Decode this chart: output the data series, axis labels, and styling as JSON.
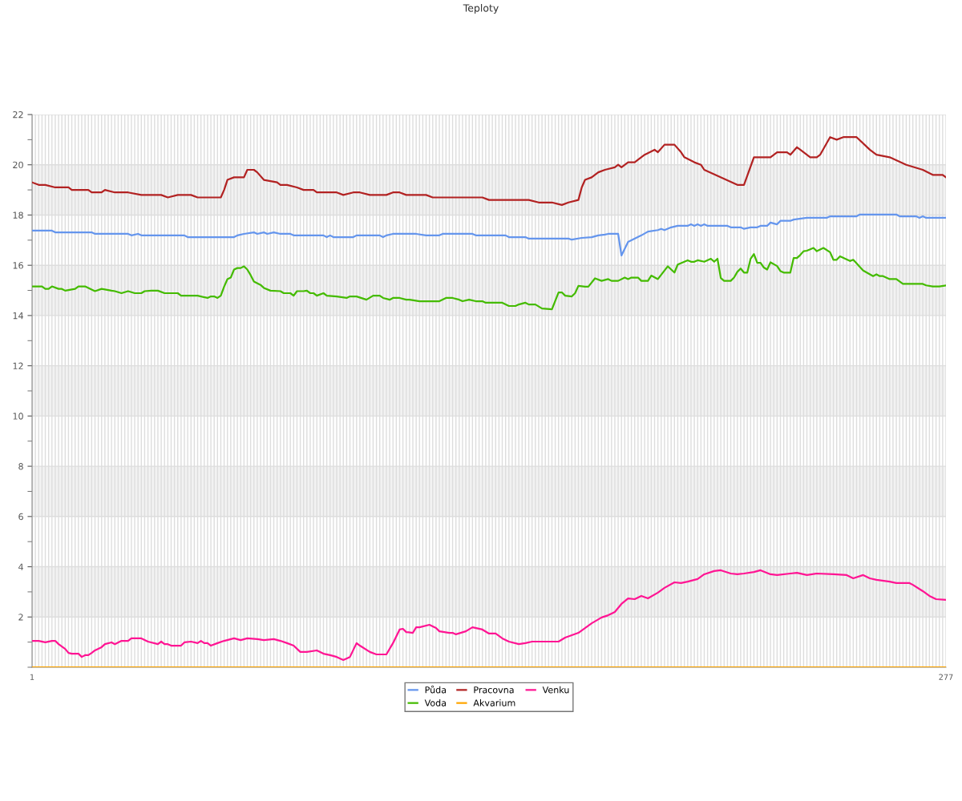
{
  "chart_data": {
    "type": "line",
    "title": "Teploty",
    "xlim": [
      1,
      277
    ],
    "ylim": [
      0,
      22
    ],
    "xticks": [
      1,
      {
        "value": 2,
        "label": null
      },
      {
        "value": 3,
        "label": null
      },
      {
        "value": 4,
        "label": null
      },
      {
        "value": 5,
        "label": null
      },
      {
        "value": 6,
        "label": null
      },
      {
        "value": 7,
        "label": null
      },
      {
        "value": 8,
        "label": null
      },
      {
        "value": 9,
        "label": null
      },
      {
        "value": 10,
        "label": null
      },
      {
        "value": 11,
        "label": null
      },
      {
        "value": 12,
        "label": null
      },
      {
        "value": 13,
        "label": null
      },
      {
        "value": 14,
        "label": null
      },
      {
        "value": 15,
        "label": null
      },
      {
        "value": 16,
        "label": null
      },
      {
        "value": 17,
        "label": null
      },
      {
        "value": 18,
        "label": null
      },
      {
        "value": 19,
        "label": null
      },
      {
        "value": 20,
        "label": null
      },
      {
        "value": 21,
        "label": null
      },
      {
        "value": 22,
        "label": null
      },
      {
        "value": 23,
        "label": null
      },
      {
        "value": 24,
        "label": null
      },
      {
        "value": 25,
        "label": null
      },
      {
        "value": 26,
        "label": null
      },
      {
        "value": 27,
        "label": null
      },
      {
        "value": 28,
        "label": null
      },
      {
        "value": 29,
        "label": null
      },
      {
        "value": 30,
        "label": null
      },
      {
        "value": 31,
        "label": null
      },
      {
        "value": 32,
        "label": null
      },
      {
        "value": 33,
        "label": null
      },
      {
        "value": 34,
        "label": null
      },
      {
        "value": 35,
        "label": null
      },
      {
        "value": 36,
        "label": null
      },
      {
        "value": 37,
        "label": null
      },
      {
        "value": 38,
        "label": null
      },
      {
        "value": 39,
        "label": null
      },
      {
        "value": 40,
        "label": null
      },
      {
        "value": 41,
        "label": null
      },
      {
        "value": 42,
        "label": null
      },
      {
        "value": 43,
        "label": null
      },
      {
        "value": 44,
        "label": null
      },
      {
        "value": 45,
        "label": null
      },
      {
        "value": 46,
        "label": null
      },
      {
        "value": 47,
        "label": null
      },
      {
        "value": 48,
        "label": null
      },
      {
        "value": 49,
        "label": null
      },
      {
        "value": 50,
        "label": null
      },
      {
        "value": 51,
        "label": null
      },
      {
        "value": 52,
        "label": null
      },
      {
        "value": 53,
        "label": null
      },
      {
        "value": 54,
        "label": null
      },
      {
        "value": 55,
        "label": null
      },
      {
        "value": 56,
        "label": null
      },
      {
        "value": 57,
        "label": null
      },
      {
        "value": 58,
        "label": null
      },
      {
        "value": 59,
        "label": null
      },
      {
        "value": 60,
        "label": null
      },
      {
        "value": 61,
        "label": null
      },
      {
        "value": 62,
        "label": null
      },
      {
        "value": 63,
        "label": null
      },
      {
        "value": 64,
        "label": null
      },
      {
        "value": 65,
        "label": null
      },
      {
        "value": 66,
        "label": null
      },
      {
        "value": 67,
        "label": null
      },
      {
        "value": 68,
        "label": null
      },
      {
        "value": 69,
        "label": null
      },
      {
        "value": 70,
        "label": null
      },
      {
        "value": 71,
        "label": null
      },
      {
        "value": 72,
        "label": null
      },
      {
        "value": 73,
        "label": null
      },
      {
        "value": 74,
        "label": null
      },
      {
        "value": 75,
        "label": null
      },
      {
        "value": 76,
        "label": null
      },
      {
        "value": 77,
        "label": null
      },
      {
        "value": 78,
        "label": null
      },
      {
        "value": 79,
        "label": null
      },
      {
        "value": 80,
        "label": null
      },
      {
        "value": 81,
        "label": null
      },
      {
        "value": 82,
        "label": null
      },
      {
        "value": 83,
        "label": null
      },
      {
        "value": 84,
        "label": null
      },
      {
        "value": 85,
        "label": null
      },
      {
        "value": 86,
        "label": null
      },
      {
        "value": 87,
        "label": null
      },
      {
        "value": 88,
        "label": null
      },
      {
        "value": 89,
        "label": null
      },
      {
        "value": 90,
        "label": null
      },
      {
        "value": 91,
        "label": null
      },
      {
        "value": 92,
        "label": null
      },
      {
        "value": 93,
        "label": null
      },
      {
        "value": 94,
        "label": null
      },
      {
        "value": 95,
        "label": null
      },
      {
        "value": 96,
        "label": null
      },
      {
        "value": 97,
        "label": null
      },
      {
        "value": 98,
        "label": null
      },
      {
        "value": 99,
        "label": null
      },
      {
        "value": 100,
        "label": null
      },
      {
        "value": 101,
        "label": null
      },
      {
        "value": 102,
        "label": null
      },
      {
        "value": 103,
        "label": null
      },
      {
        "value": 104,
        "label": null
      },
      {
        "value": 105,
        "label": null
      },
      {
        "value": 106,
        "label": null
      },
      {
        "value": 107,
        "label": null
      },
      {
        "value": 108,
        "label": null
      },
      {
        "value": 109,
        "label": null
      },
      {
        "value": 110,
        "label": null
      },
      {
        "value": 111,
        "label": null
      },
      {
        "value": 112,
        "label": null
      },
      {
        "value": 113,
        "label": null
      },
      {
        "value": 114,
        "label": null
      },
      {
        "value": 115,
        "label": null
      },
      {
        "value": 116,
        "label": null
      },
      {
        "value": 117,
        "label": null
      },
      {
        "value": 118,
        "label": null
      },
      {
        "value": 119,
        "label": null
      },
      {
        "value": 120,
        "label": null
      },
      {
        "value": 121,
        "label": null
      },
      {
        "value": 122,
        "label": null
      },
      {
        "value": 123,
        "label": null
      },
      {
        "value": 124,
        "label": null
      },
      {
        "value": 125,
        "label": null
      },
      {
        "value": 126,
        "label": null
      },
      {
        "value": 127,
        "label": null
      },
      {
        "value": 128,
        "label": null
      },
      {
        "value": 129,
        "label": null
      },
      {
        "value": 130,
        "label": null
      },
      {
        "value": 131,
        "label": null
      },
      {
        "value": 132,
        "label": null
      },
      {
        "value": 133,
        "label": null
      },
      {
        "value": 134,
        "label": null
      },
      {
        "value": 135,
        "label": null
      },
      {
        "value": 136,
        "label": null
      },
      {
        "value": 137,
        "label": null
      },
      {
        "value": 138,
        "label": null
      },
      {
        "value": 139,
        "label": null
      },
      {
        "value": 140,
        "label": null
      },
      {
        "value": 141,
        "label": null
      },
      {
        "value": 142,
        "label": null
      },
      {
        "value": 143,
        "label": null
      },
      {
        "value": 144,
        "label": null
      },
      {
        "value": 145,
        "label": null
      },
      {
        "value": 146,
        "label": null
      },
      {
        "value": 147,
        "label": null
      },
      {
        "value": 148,
        "label": null
      },
      {
        "value": 149,
        "label": null
      },
      {
        "value": 150,
        "label": null
      },
      {
        "value": 151,
        "label": null
      },
      {
        "value": 152,
        "label": null
      },
      {
        "value": 153,
        "label": null
      },
      {
        "value": 154,
        "label": null
      },
      {
        "value": 155,
        "label": null
      },
      {
        "value": 156,
        "label": null
      },
      {
        "value": 157,
        "label": null
      },
      {
        "value": 158,
        "label": null
      },
      {
        "value": 159,
        "label": null
      },
      {
        "value": 160,
        "label": null
      },
      {
        "value": 161,
        "label": null
      },
      {
        "value": 162,
        "label": null
      },
      {
        "value": 163,
        "label": null
      },
      {
        "value": 164,
        "label": null
      },
      {
        "value": 165,
        "label": null
      },
      {
        "value": 166,
        "label": null
      },
      {
        "value": 167,
        "label": null
      },
      {
        "value": 168,
        "label": null
      },
      {
        "value": 169,
        "label": null
      },
      {
        "value": 170,
        "label": null
      },
      {
        "value": 171,
        "label": null
      },
      {
        "value": 172,
        "label": null
      },
      {
        "value": 173,
        "label": null
      },
      {
        "value": 174,
        "label": null
      },
      {
        "value": 175,
        "label": null
      },
      {
        "value": 176,
        "label": null
      },
      {
        "value": 177,
        "label": null
      },
      {
        "value": 178,
        "label": null
      },
      {
        "value": 179,
        "label": null
      },
      {
        "value": 180,
        "label": null
      },
      {
        "value": 181,
        "label": null
      },
      {
        "value": 182,
        "label": null
      },
      {
        "value": 183,
        "label": null
      },
      {
        "value": 184,
        "label": null
      },
      {
        "value": 185,
        "label": null
      },
      {
        "value": 186,
        "label": null
      },
      {
        "value": 187,
        "label": null
      },
      {
        "value": 188,
        "label": null
      },
      {
        "value": 189,
        "label": null
      },
      {
        "value": 190,
        "label": null
      },
      {
        "value": 191,
        "label": null
      },
      {
        "value": 192,
        "label": null
      },
      {
        "value": 193,
        "label": null
      },
      {
        "value": 194,
        "label": null
      },
      {
        "value": 195,
        "label": null
      },
      {
        "value": 196,
        "label": null
      },
      {
        "value": 197,
        "label": null
      },
      {
        "value": 198,
        "label": null
      },
      {
        "value": 199,
        "label": null
      },
      {
        "value": 200,
        "label": null
      },
      {
        "value": 201,
        "label": null
      },
      {
        "value": 202,
        "label": null
      },
      {
        "value": 203,
        "label": null
      },
      {
        "value": 204,
        "label": null
      },
      {
        "value": 205,
        "label": null
      },
      {
        "value": 206,
        "label": null
      },
      {
        "value": 207,
        "label": null
      },
      {
        "value": 208,
        "label": null
      },
      {
        "value": 209,
        "label": null
      },
      {
        "value": 210,
        "label": null
      },
      {
        "value": 211,
        "label": null
      },
      {
        "value": 212,
        "label": null
      },
      {
        "value": 213,
        "label": null
      },
      {
        "value": 214,
        "label": null
      },
      {
        "value": 215,
        "label": null
      },
      {
        "value": 216,
        "label": null
      },
      {
        "value": 217,
        "label": null
      },
      {
        "value": 218,
        "label": null
      },
      {
        "value": 219,
        "label": null
      },
      {
        "value": 220,
        "label": null
      },
      {
        "value": 221,
        "label": null
      },
      {
        "value": 222,
        "label": null
      },
      {
        "value": 223,
        "label": null
      },
      {
        "value": 224,
        "label": null
      },
      {
        "value": 225,
        "label": null
      },
      {
        "value": 226,
        "label": null
      },
      {
        "value": 227,
        "label": null
      },
      {
        "value": 228,
        "label": null
      },
      {
        "value": 229,
        "label": null
      },
      {
        "value": 230,
        "label": null
      },
      {
        "value": 231,
        "label": null
      },
      {
        "value": 232,
        "label": null
      },
      {
        "value": 233,
        "label": null
      },
      {
        "value": 234,
        "label": null
      },
      {
        "value": 235,
        "label": null
      },
      {
        "value": 236,
        "label": null
      },
      {
        "value": 237,
        "label": null
      },
      {
        "value": 238,
        "label": null
      },
      {
        "value": 239,
        "label": null
      },
      {
        "value": 240,
        "label": null
      },
      {
        "value": 241,
        "label": null
      },
      {
        "value": 242,
        "label": null
      },
      {
        "value": 243,
        "label": null
      },
      {
        "value": 244,
        "label": null
      },
      {
        "value": 245,
        "label": null
      },
      {
        "value": 246,
        "label": null
      },
      {
        "value": 247,
        "label": null
      },
      {
        "value": 248,
        "label": null
      },
      {
        "value": 249,
        "label": null
      },
      {
        "value": 250,
        "label": null
      },
      {
        "value": 251,
        "label": null
      },
      {
        "value": 252,
        "label": null
      },
      {
        "value": 253,
        "label": null
      },
      {
        "value": 254,
        "label": null
      },
      {
        "value": 255,
        "label": null
      },
      {
        "value": 256,
        "label": null
      },
      {
        "value": 257,
        "label": null
      },
      {
        "value": 258,
        "label": null
      },
      {
        "value": 259,
        "label": null
      },
      {
        "value": 260,
        "label": null
      },
      {
        "value": 261,
        "label": null
      },
      {
        "value": 262,
        "label": null
      },
      {
        "value": 263,
        "label": null
      },
      {
        "value": 264,
        "label": null
      },
      {
        "value": 265,
        "label": null
      },
      {
        "value": 266,
        "label": null
      },
      {
        "value": 267,
        "label": null
      },
      {
        "value": 268,
        "label": null
      },
      {
        "value": 269,
        "label": null
      },
      {
        "value": 270,
        "label": null
      },
      {
        "value": 271,
        "label": null
      },
      {
        "value": 272,
        "label": null
      },
      {
        "value": 273,
        "label": null
      },
      {
        "value": 274,
        "label": null
      },
      {
        "value": 275,
        "label": null
      },
      {
        "value": 276,
        "label": null
      },
      277
    ],
    "yticks": [
      {
        "value": 0,
        "label": null
      },
      {
        "value": 1,
        "label": null
      },
      2,
      {
        "value": 3,
        "label": null
      },
      4,
      {
        "value": 5,
        "label": null
      },
      6,
      {
        "value": 7,
        "label": null
      },
      8,
      {
        "value": 9,
        "label": null
      },
      10,
      {
        "value": 11,
        "label": null
      },
      12,
      {
        "value": 13,
        "label": null
      },
      14,
      {
        "value": 15,
        "label": null
      },
      16,
      {
        "value": 17,
        "label": null
      },
      18,
      {
        "value": 19,
        "label": null
      },
      20,
      {
        "value": 21,
        "label": null
      },
      22
    ],
    "bands": [
      {
        "axis": "y",
        "from": 2,
        "to": 4,
        "color": "#f2f2f2"
      },
      {
        "axis": "y",
        "from": 6,
        "to": 8,
        "color": "#f2f2f2"
      },
      {
        "axis": "y",
        "from": 10,
        "to": 12,
        "color": "#f2f2f2"
      },
      {
        "axis": "y",
        "from": 14,
        "to": 16,
        "color": "#f2f2f2"
      },
      {
        "axis": "y",
        "from": 18,
        "to": 20,
        "color": "#f2f2f2"
      }
    ],
    "grid": true,
    "legend": "bottom",
    "marker": "none",
    "line_style": "solid",
    "series": [
      {
        "name": "Půda",
        "color": "#6495ed",
        "x": [
          1,
          7,
          8,
          19,
          20,
          30,
          31,
          33,
          34,
          47,
          48,
          62,
          63,
          65,
          68,
          69,
          71,
          72,
          74,
          76,
          79,
          80,
          89,
          90,
          91,
          92,
          98,
          99,
          106,
          107,
          108,
          110,
          117,
          120,
          124,
          125,
          134,
          135,
          144,
          145,
          150,
          151,
          163,
          164,
          167,
          170,
          172,
          174,
          175,
          178,
          179,
          181,
          185,
          187,
          190,
          191,
          192,
          194,
          196,
          199,
          200,
          201,
          202,
          203,
          204,
          205,
          211,
          212,
          215,
          216,
          218,
          220,
          221,
          223,
          224,
          226,
          227,
          230,
          231,
          235,
          241,
          242,
          250,
          251,
          262,
          263,
          268,
          269,
          270,
          271,
          277
        ],
        "values": [
          17.38,
          17.38,
          17.31,
          17.31,
          17.25,
          17.25,
          17.19,
          17.25,
          17.19,
          17.19,
          17.12,
          17.12,
          17.19,
          17.25,
          17.31,
          17.25,
          17.31,
          17.25,
          17.31,
          17.25,
          17.25,
          17.19,
          17.19,
          17.12,
          17.19,
          17.12,
          17.12,
          17.19,
          17.19,
          17.12,
          17.19,
          17.25,
          17.25,
          17.19,
          17.19,
          17.25,
          17.25,
          17.19,
          17.19,
          17.12,
          17.12,
          17.06,
          17.06,
          17.02,
          17.09,
          17.12,
          17.19,
          17.22,
          17.25,
          17.25,
          16.39,
          16.93,
          17.19,
          17.34,
          17.4,
          17.45,
          17.4,
          17.51,
          17.57,
          17.57,
          17.63,
          17.57,
          17.63,
          17.57,
          17.63,
          17.57,
          17.57,
          17.51,
          17.51,
          17.45,
          17.51,
          17.51,
          17.57,
          17.57,
          17.7,
          17.63,
          17.77,
          17.77,
          17.82,
          17.89,
          17.89,
          17.95,
          17.95,
          18.02,
          18.02,
          17.95,
          17.95,
          17.89,
          17.95,
          17.89,
          17.89
        ]
      },
      {
        "name": "Voda",
        "color": "#44bb00",
        "x": [
          1,
          4,
          5,
          6,
          7,
          9,
          10,
          11,
          14,
          15,
          17,
          19,
          20,
          22,
          25,
          26,
          28,
          30,
          32,
          34,
          35,
          37,
          39,
          41,
          45,
          46,
          49,
          51,
          54,
          55,
          56,
          57,
          58,
          59,
          60,
          61,
          62,
          63,
          64,
          65,
          66,
          67,
          68,
          70,
          71,
          73,
          76,
          77,
          79,
          80,
          81,
          83,
          84,
          85,
          86,
          87,
          89,
          90,
          93,
          96,
          97,
          99,
          102,
          104,
          106,
          107,
          109,
          110,
          112,
          114,
          115,
          118,
          124,
          126,
          128,
          130,
          131,
          133,
          135,
          137,
          138,
          143,
          145,
          147,
          148,
          150,
          151,
          153,
          155,
          158,
          160,
          161,
          162,
          164,
          165,
          166,
          168,
          169,
          171,
          173,
          175,
          176,
          178,
          180,
          181,
          182,
          184,
          185,
          187,
          188,
          190,
          193,
          195,
          196,
          199,
          200,
          201,
          202,
          204,
          206,
          207,
          208,
          209,
          210,
          212,
          213,
          214,
          215,
          216,
          217,
          218,
          219,
          220,
          221,
          222,
          223,
          224,
          226,
          227,
          228,
          230,
          231,
          232,
          233,
          234,
          235,
          237,
          238,
          240,
          242,
          243,
          244,
          245,
          248,
          249,
          252,
          255,
          256,
          257,
          258,
          260,
          262,
          264,
          270,
          271,
          273,
          275,
          277
        ],
        "values": [
          15.16,
          15.16,
          15.06,
          15.06,
          15.16,
          15.06,
          15.06,
          14.99,
          15.06,
          15.16,
          15.16,
          15.03,
          14.97,
          15.06,
          14.99,
          14.97,
          14.89,
          14.97,
          14.89,
          14.89,
          14.97,
          14.99,
          14.99,
          14.89,
          14.89,
          14.79,
          14.79,
          14.79,
          14.7,
          14.76,
          14.76,
          14.7,
          14.79,
          15.15,
          15.45,
          15.51,
          15.83,
          15.89,
          15.89,
          15.96,
          15.83,
          15.61,
          15.35,
          15.22,
          15.1,
          14.99,
          14.97,
          14.89,
          14.89,
          14.79,
          14.97,
          14.97,
          14.99,
          14.89,
          14.89,
          14.79,
          14.89,
          14.79,
          14.76,
          14.7,
          14.76,
          14.76,
          14.63,
          14.79,
          14.79,
          14.7,
          14.63,
          14.7,
          14.7,
          14.63,
          14.63,
          14.57,
          14.57,
          14.7,
          14.7,
          14.63,
          14.57,
          14.63,
          14.57,
          14.57,
          14.51,
          14.51,
          14.38,
          14.38,
          14.44,
          14.51,
          14.44,
          14.44,
          14.28,
          14.25,
          14.92,
          14.92,
          14.79,
          14.76,
          14.89,
          15.18,
          15.15,
          15.15,
          15.48,
          15.38,
          15.45,
          15.38,
          15.38,
          15.51,
          15.45,
          15.51,
          15.51,
          15.38,
          15.38,
          15.59,
          15.45,
          15.96,
          15.71,
          16.03,
          16.2,
          16.14,
          16.14,
          16.2,
          16.14,
          16.26,
          16.14,
          16.26,
          15.49,
          15.38,
          15.38,
          15.51,
          15.74,
          15.87,
          15.71,
          15.71,
          16.26,
          16.45,
          16.1,
          16.1,
          15.91,
          15.83,
          16.12,
          15.97,
          15.77,
          15.71,
          15.71,
          16.29,
          16.29,
          16.41,
          16.56,
          16.58,
          16.69,
          16.56,
          16.69,
          16.52,
          16.22,
          16.22,
          16.36,
          16.17,
          16.22,
          15.79,
          15.57,
          15.64,
          15.57,
          15.57,
          15.45,
          15.45,
          15.26,
          15.26,
          15.2,
          15.16,
          15.16,
          15.2
        ]
      },
      {
        "name": "Pracovna",
        "color": "#b22222",
        "x": [
          1,
          3,
          5,
          8,
          9,
          12,
          13,
          18,
          19,
          22,
          23,
          26,
          30,
          34,
          40,
          42,
          45,
          49,
          51,
          58,
          59,
          60,
          62,
          64,
          65,
          66,
          68,
          69,
          71,
          75,
          76,
          78,
          81,
          83,
          86,
          87,
          93,
          95,
          98,
          100,
          103,
          108,
          110,
          112,
          114,
          120,
          122,
          127,
          132,
          137,
          139,
          144,
          146,
          151,
          154,
          158,
          161,
          163,
          166,
          167,
          168,
          170,
          172,
          174,
          177,
          178,
          179,
          181,
          183,
          184,
          186,
          189,
          190,
          192,
          195,
          197,
          198,
          201,
          203,
          204,
          214,
          216,
          219,
          221,
          224,
          226,
          229,
          230,
          232,
          233,
          236,
          238,
          239,
          242,
          244,
          246,
          247,
          250,
          254,
          256,
          260,
          265,
          270,
          273,
          276,
          277
        ],
        "values": [
          19.3,
          19.2,
          19.2,
          19.1,
          19.1,
          19.1,
          19.0,
          19.0,
          18.9,
          18.9,
          19.0,
          18.9,
          18.9,
          18.8,
          18.8,
          18.7,
          18.8,
          18.8,
          18.7,
          18.7,
          19.0,
          19.4,
          19.5,
          19.5,
          19.5,
          19.8,
          19.8,
          19.7,
          19.4,
          19.3,
          19.2,
          19.2,
          19.1,
          19.0,
          19.0,
          18.9,
          18.9,
          18.8,
          18.9,
          18.9,
          18.8,
          18.8,
          18.9,
          18.9,
          18.8,
          18.8,
          18.7,
          18.7,
          18.7,
          18.7,
          18.6,
          18.6,
          18.6,
          18.6,
          18.5,
          18.5,
          18.4,
          18.5,
          18.6,
          19.1,
          19.4,
          19.5,
          19.7,
          19.8,
          19.9,
          20.0,
          19.9,
          20.1,
          20.1,
          20.2,
          20.4,
          20.6,
          20.5,
          20.8,
          20.8,
          20.5,
          20.3,
          20.1,
          20.0,
          19.8,
          19.2,
          19.2,
          20.3,
          20.3,
          20.3,
          20.5,
          20.5,
          20.4,
          20.7,
          20.6,
          20.3,
          20.3,
          20.4,
          21.1,
          21.0,
          21.1,
          21.1,
          21.1,
          20.6,
          20.4,
          20.3,
          20.0,
          19.8,
          19.6,
          19.6,
          19.5
        ]
      },
      {
        "name": "Akvarium",
        "color": "#ffa500",
        "x": [
          1,
          277
        ],
        "values": [
          0,
          0
        ]
      },
      {
        "name": "Venku",
        "color": "#ff1493",
        "x": [
          1,
          3,
          5,
          7,
          8,
          9,
          11,
          12,
          13,
          15,
          16,
          17,
          18,
          19,
          20,
          22,
          23,
          25,
          26,
          28,
          30,
          31,
          34,
          36,
          39,
          40,
          41,
          42,
          43,
          46,
          47,
          49,
          51,
          52,
          53,
          54,
          55,
          57,
          59,
          62,
          64,
          66,
          69,
          71,
          74,
          76,
          78,
          80,
          82,
          84,
          87,
          89,
          91,
          93,
          95,
          97,
          99,
          100,
          103,
          105,
          108,
          110,
          112,
          113,
          114,
          116,
          117,
          118,
          121,
          123,
          124,
          127,
          128,
          129,
          132,
          134,
          137,
          139,
          141,
          143,
          145,
          148,
          150,
          152,
          160,
          162,
          166,
          168,
          170,
          173,
          175,
          177,
          179,
          181,
          183,
          185,
          187,
          190,
          192,
          195,
          197,
          199,
          202,
          204,
          207,
          209,
          212,
          214,
          216,
          219,
          221,
          224,
          226,
          230,
          232,
          235,
          238,
          243,
          247,
          249,
          252,
          254,
          256,
          260,
          262,
          266,
          267,
          270,
          272,
          274,
          277
        ],
        "values": [
          1.05,
          1.05,
          0.99,
          1.05,
          1.05,
          0.92,
          0.73,
          0.57,
          0.54,
          0.54,
          0.41,
          0.48,
          0.48,
          0.57,
          0.67,
          0.8,
          0.92,
          0.99,
          0.92,
          1.05,
          1.05,
          1.15,
          1.15,
          1.02,
          0.92,
          1.02,
          0.92,
          0.92,
          0.86,
          0.86,
          0.99,
          1.02,
          0.96,
          1.05,
          0.96,
          0.96,
          0.86,
          0.96,
          1.05,
          1.15,
          1.08,
          1.15,
          1.12,
          1.08,
          1.12,
          1.05,
          0.96,
          0.86,
          0.61,
          0.61,
          0.67,
          0.54,
          0.48,
          0.41,
          0.29,
          0.41,
          0.96,
          0.86,
          0.61,
          0.51,
          0.51,
          0.96,
          1.5,
          1.53,
          1.4,
          1.37,
          1.59,
          1.59,
          1.69,
          1.56,
          1.43,
          1.37,
          1.37,
          1.31,
          1.43,
          1.59,
          1.5,
          1.34,
          1.34,
          1.15,
          1.02,
          0.92,
          0.96,
          1.02,
          1.02,
          1.18,
          1.37,
          1.56,
          1.75,
          1.98,
          2.07,
          2.2,
          2.52,
          2.74,
          2.71,
          2.84,
          2.74,
          2.97,
          3.16,
          3.38,
          3.35,
          3.41,
          3.51,
          3.7,
          3.83,
          3.86,
          3.73,
          3.7,
          3.73,
          3.79,
          3.86,
          3.7,
          3.67,
          3.73,
          3.76,
          3.67,
          3.73,
          3.7,
          3.67,
          3.54,
          3.67,
          3.54,
          3.48,
          3.41,
          3.35,
          3.35,
          3.28,
          3.03,
          2.84,
          2.71,
          2.68
        ]
      }
    ]
  }
}
